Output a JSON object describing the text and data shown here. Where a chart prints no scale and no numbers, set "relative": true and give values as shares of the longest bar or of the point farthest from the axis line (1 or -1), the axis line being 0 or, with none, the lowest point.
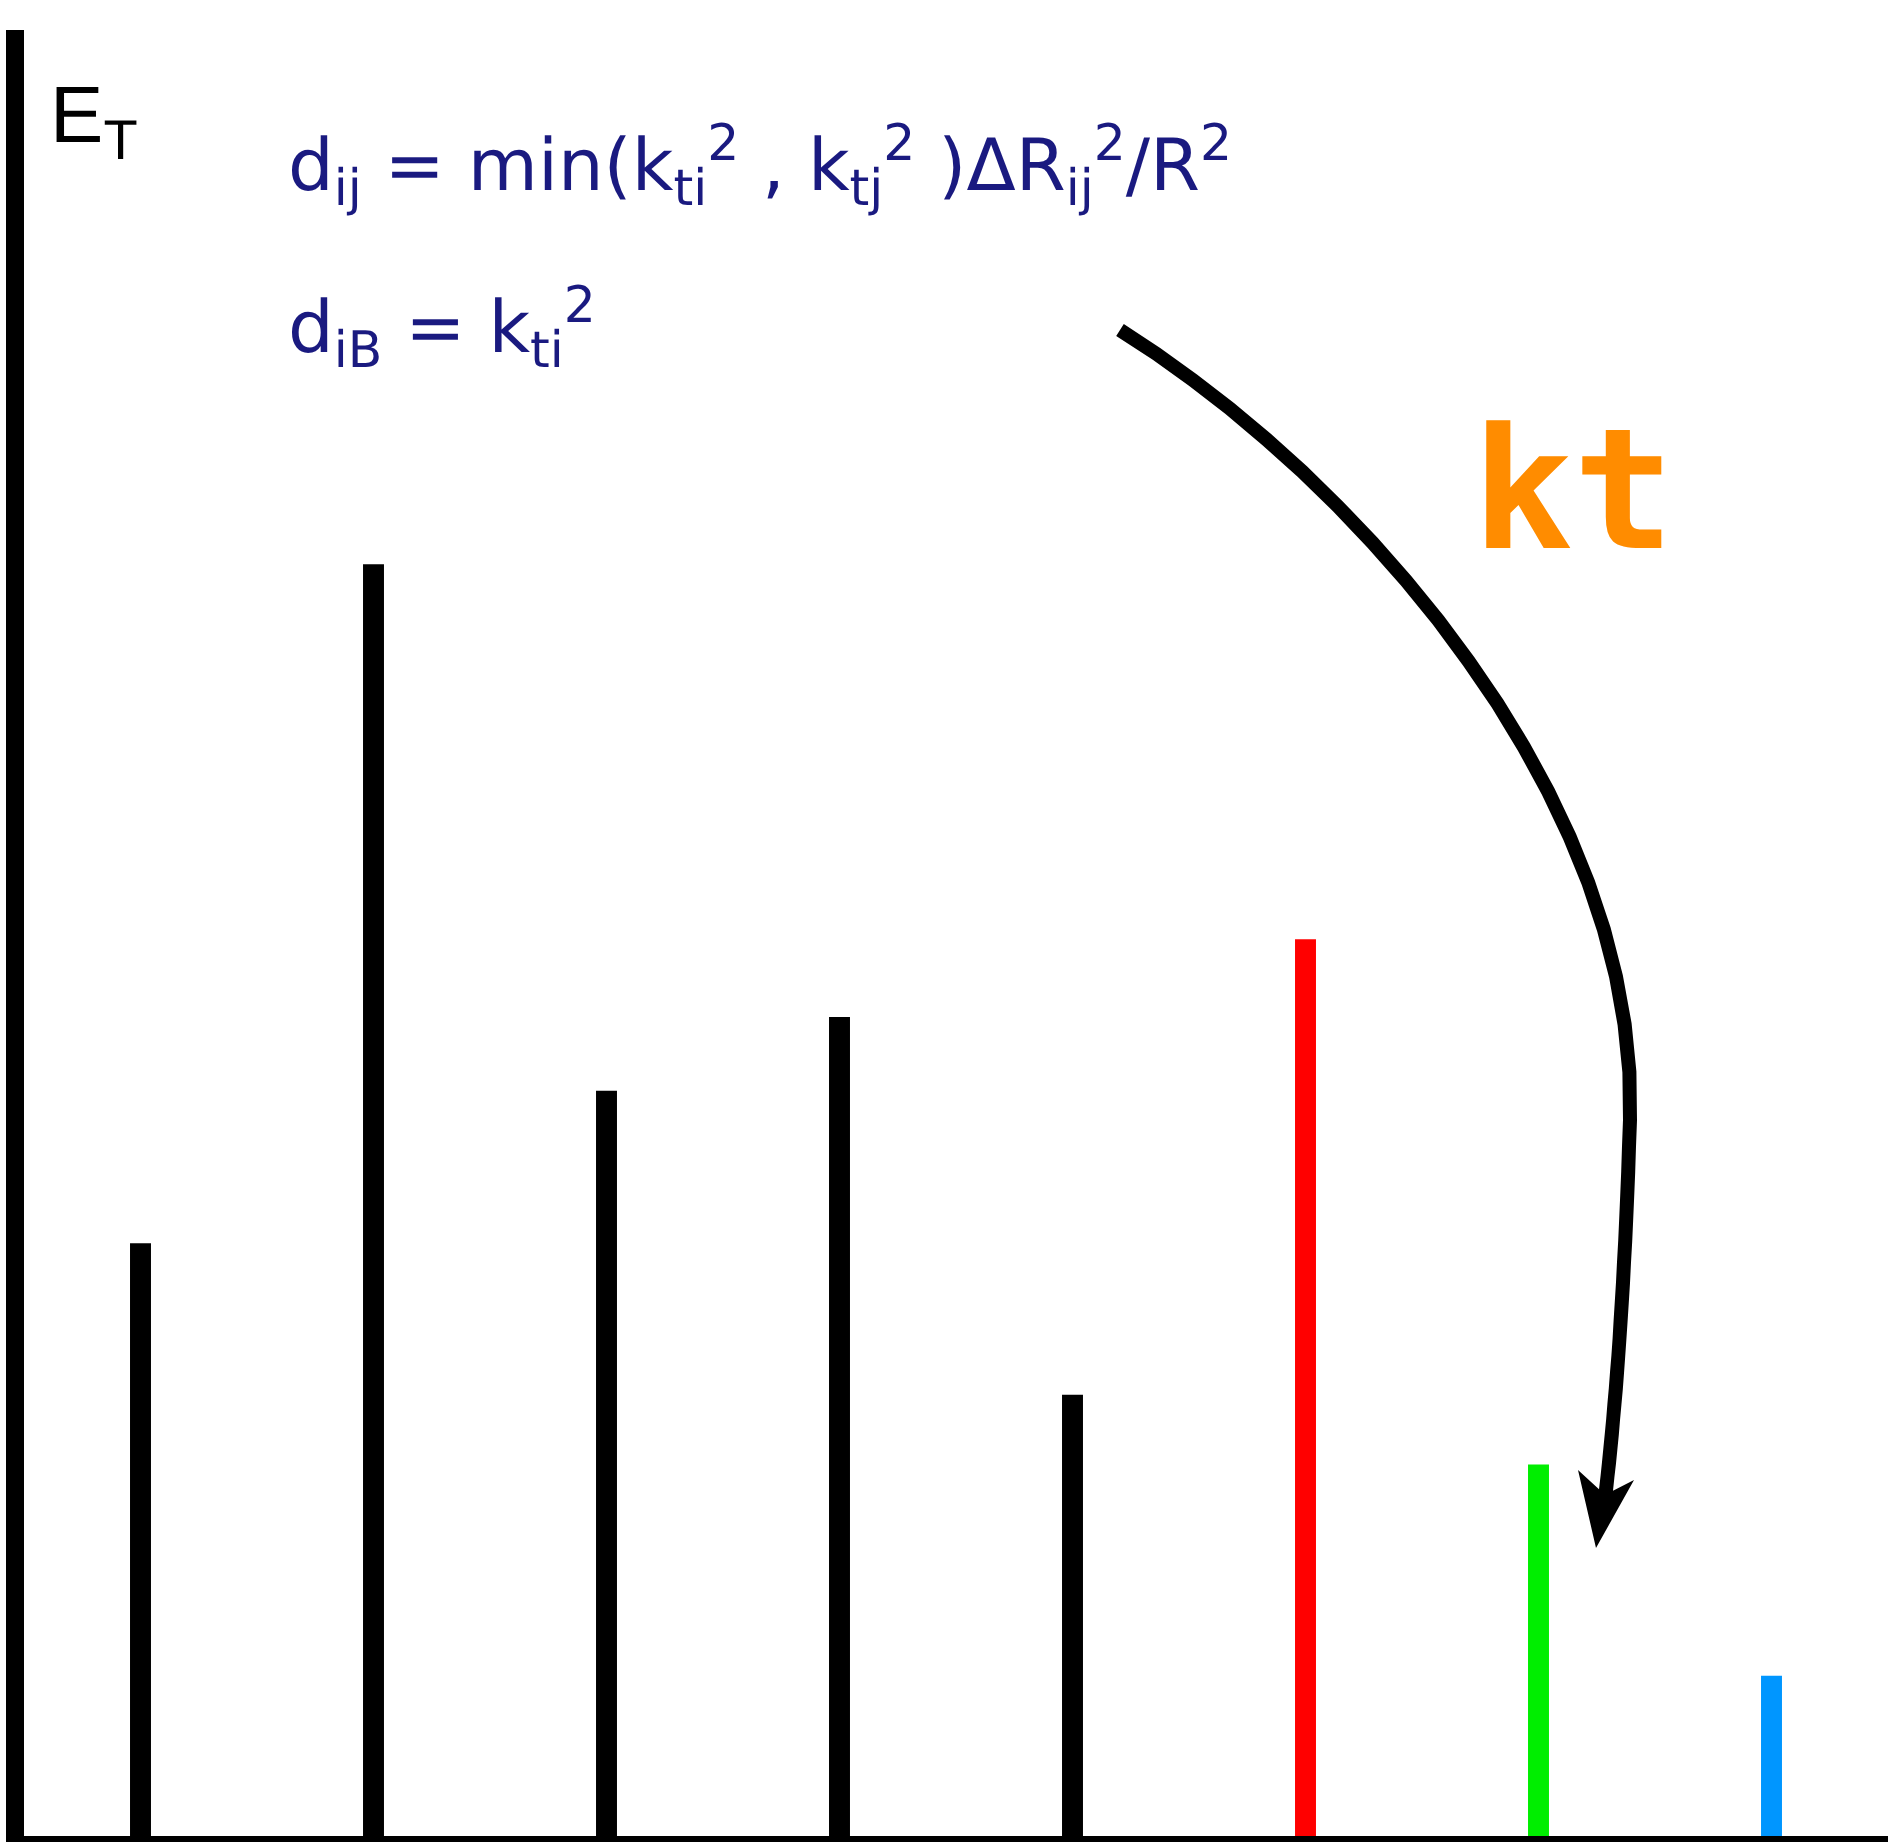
{
  "chart_data": {
    "type": "bar",
    "relative": true,
    "categories": [
      null,
      null,
      null,
      null,
      null,
      null,
      null,
      null
    ],
    "values": [
      0.466,
      1,
      0.586,
      0.644,
      0.347,
      0.705,
      0.292,
      0.126
    ],
    "colors": [
      "#000000",
      "#000000",
      "#000000",
      "#000000",
      "#000000",
      "#ff0000",
      "#00ee00",
      "#0096ff"
    ],
    "annotations": [
      "d$_{ij}$ = min(k$_{ti}$$^{2}$ , k$_{tj}$$^{2}$ )ΔR$_{ij}$$^{2}$/R$^{2}$",
      "d$_{iB}$ = k$_{ti}$$^{2}$",
      "kt",
      "E$_{T}$"
    ],
    "grid": false
  }
}
